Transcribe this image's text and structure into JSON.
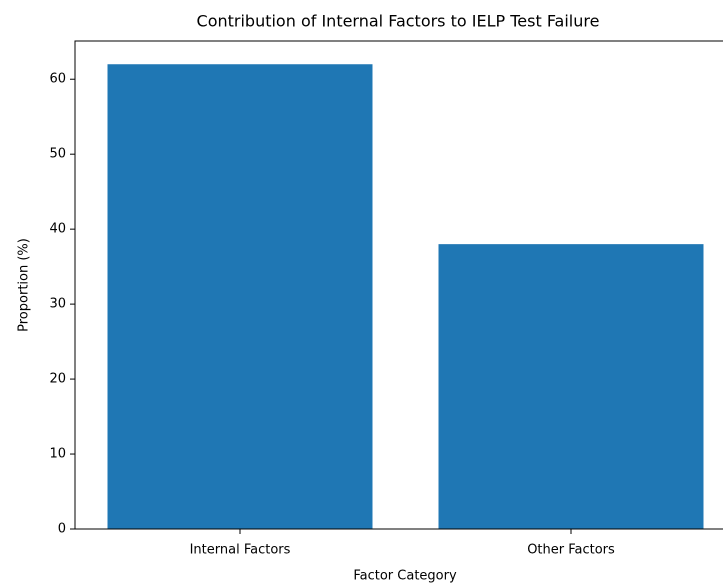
{
  "chart_data": {
    "type": "bar",
    "title": "Contribution of Internal Factors to IELP Test Failure",
    "xlabel": "Factor Category",
    "ylabel": "Proportion (%)",
    "categories": [
      "Internal Factors",
      "Other Factors"
    ],
    "values": [
      62,
      38
    ],
    "color": "#1f77b4",
    "ylim": [
      0,
      65.1
    ],
    "yticks": [
      0,
      10,
      20,
      30,
      40,
      50,
      60
    ],
    "grid": false
  }
}
